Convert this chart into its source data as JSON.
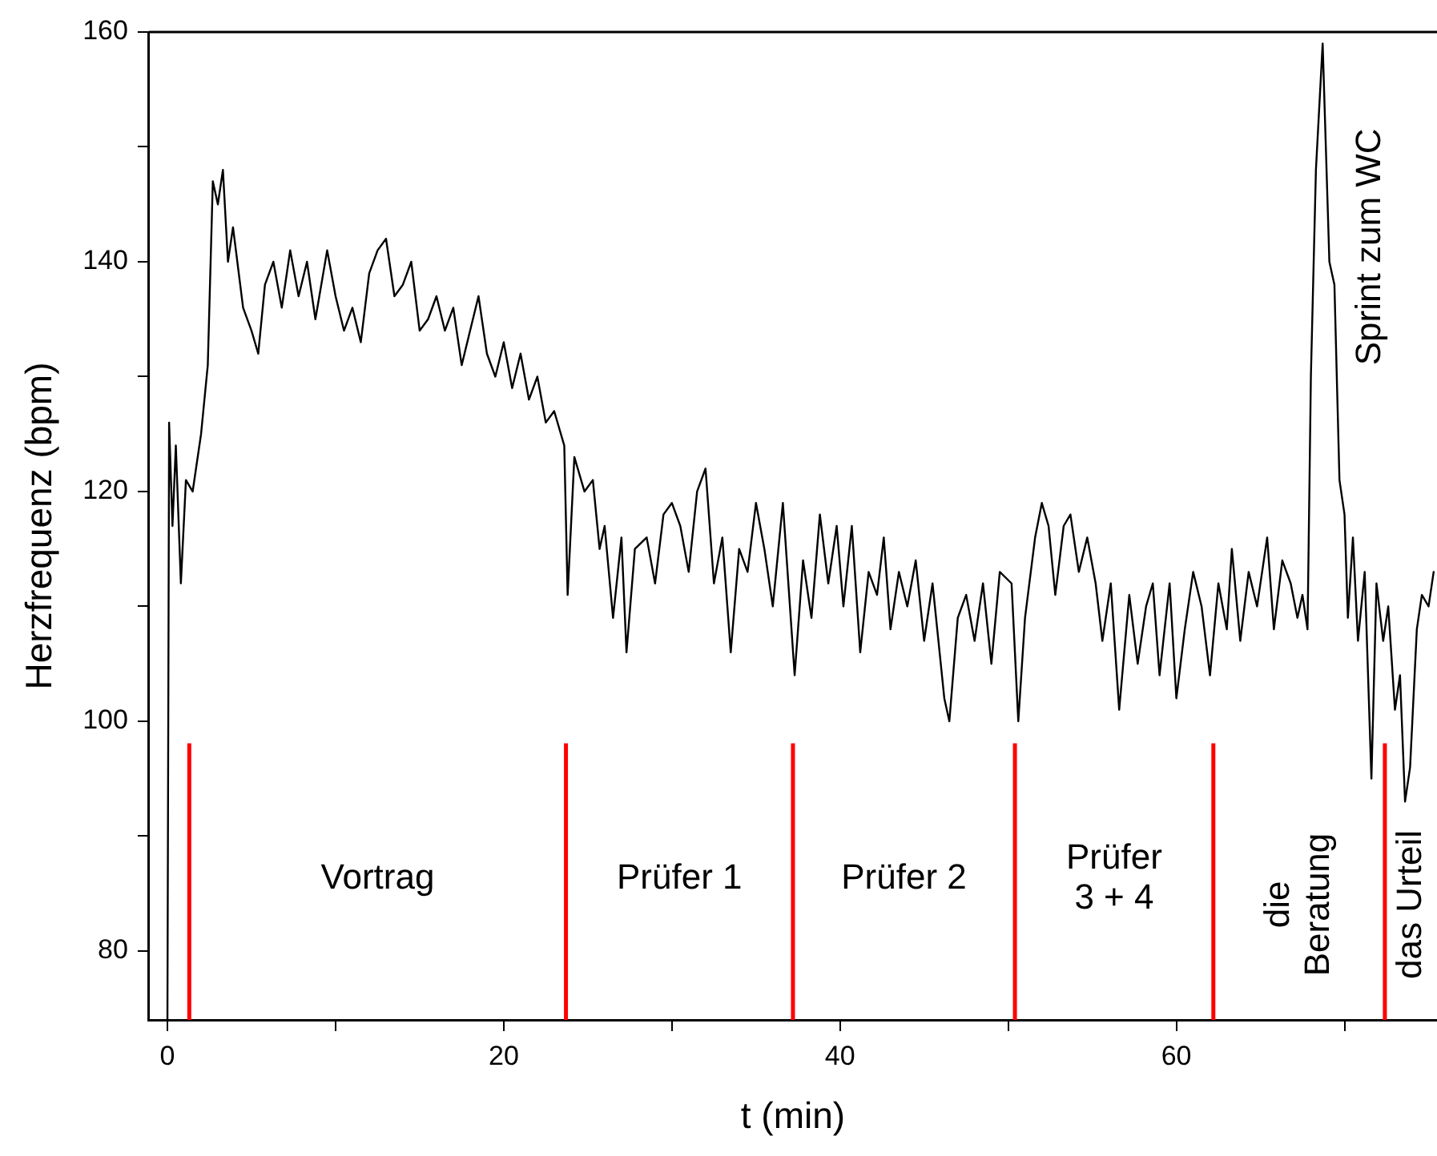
{
  "chart_data": {
    "type": "line",
    "xlabel": "t (min)",
    "ylabel": "Herzfrequenz (bpm)",
    "xlim": [
      -1.1,
      75.5
    ],
    "ylim": [
      74,
      160
    ],
    "xticks": [
      0,
      {
        "value": 10,
        "label": null
      },
      20,
      {
        "value": 30,
        "label": null
      },
      40,
      {
        "value": 50,
        "label": null
      },
      60,
      {
        "value": 70,
        "label": null
      }
    ],
    "yticks": [
      80,
      {
        "value": 90,
        "label": null
      },
      100,
      {
        "value": 110,
        "label": null
      },
      120,
      {
        "value": 130,
        "label": null
      },
      140,
      {
        "value": 150,
        "label": null
      },
      160
    ],
    "grid": false,
    "legend": false,
    "marker": "none",
    "line_style": "solid",
    "series": [
      {
        "color": "#000000",
        "x": [
          0,
          0.1,
          0.3,
          0.5,
          0.8,
          1.1,
          1.5,
          2.0,
          2.4,
          2.7,
          3.0,
          3.3,
          3.6,
          3.9,
          4.5,
          5.0,
          5.4,
          5.8,
          6.3,
          6.8,
          7.3,
          7.8,
          8.3,
          8.8,
          9.5,
          10.0,
          10.5,
          11.0,
          11.5,
          12.0,
          12.5,
          13.0,
          13.5,
          14.0,
          14.5,
          15.0,
          15.5,
          16.0,
          16.5,
          17.0,
          17.5,
          18.0,
          18.5,
          19.0,
          19.5,
          20.0,
          20.5,
          21.0,
          21.5,
          22.0,
          22.5,
          23.0,
          23.6,
          23.8,
          24.2,
          24.8,
          25.3,
          25.7,
          26.0,
          26.5,
          27.0,
          27.3,
          27.8,
          28.5,
          29.0,
          29.5,
          30.0,
          30.5,
          31.0,
          31.5,
          32.0,
          32.5,
          33.0,
          33.5,
          34.0,
          34.5,
          35.0,
          35.5,
          36.0,
          36.6,
          37.3,
          37.8,
          38.3,
          38.8,
          39.3,
          39.8,
          40.2,
          40.7,
          41.2,
          41.7,
          42.2,
          42.6,
          43.0,
          43.5,
          44.0,
          44.5,
          45.0,
          45.5,
          46.2,
          46.5,
          47.0,
          47.5,
          48.0,
          48.5,
          49.0,
          49.5,
          50.2,
          50.6,
          51.0,
          51.6,
          52.0,
          52.4,
          52.8,
          53.3,
          53.7,
          54.2,
          54.7,
          55.2,
          55.6,
          56.1,
          56.6,
          57.2,
          57.7,
          58.2,
          58.6,
          59.0,
          59.6,
          60.0,
          60.5,
          61.0,
          61.5,
          62.0,
          62.5,
          63.0,
          63.3,
          63.8,
          64.3,
          64.8,
          65.4,
          65.8,
          66.3,
          66.8,
          67.2,
          67.5,
          67.8,
          68.0,
          68.3,
          68.7,
          69.1,
          69.4,
          69.7,
          70.0,
          70.2,
          70.5,
          70.8,
          71.2,
          71.6,
          71.9,
          72.3,
          72.6,
          73.0,
          73.3,
          73.6,
          73.9,
          74.3,
          74.6,
          75.0,
          75.3
        ],
        "values": [
          74,
          126,
          117,
          124,
          112,
          121,
          120,
          125,
          131,
          147,
          145,
          148,
          140,
          143,
          136,
          134,
          132,
          138,
          140,
          136,
          141,
          137,
          140,
          135,
          141,
          137,
          134,
          136,
          133,
          139,
          141,
          142,
          137,
          138,
          140,
          134,
          135,
          137,
          134,
          136,
          131,
          134,
          137,
          132,
          130,
          133,
          129,
          132,
          128,
          130,
          126,
          127,
          124,
          111,
          123,
          120,
          121,
          115,
          117,
          109,
          116,
          106,
          115,
          116,
          112,
          118,
          119,
          117,
          113,
          120,
          122,
          112,
          116,
          106,
          115,
          113,
          119,
          115,
          110,
          119,
          104,
          114,
          109,
          118,
          112,
          117,
          110,
          117,
          106,
          113,
          111,
          116,
          108,
          113,
          110,
          114,
          107,
          112,
          102,
          100,
          109,
          111,
          107,
          112,
          105,
          113,
          112,
          100,
          109,
          116,
          119,
          117,
          111,
          117,
          118,
          113,
          116,
          112,
          107,
          112,
          101,
          111,
          105,
          110,
          112,
          104,
          112,
          102,
          108,
          113,
          110,
          104,
          112,
          108,
          115,
          107,
          113,
          110,
          116,
          108,
          114,
          112,
          109,
          111,
          108,
          130,
          148,
          159,
          140,
          138,
          121,
          118,
          109,
          116,
          107,
          113,
          95,
          112,
          107,
          110,
          101,
          104,
          93,
          96,
          108,
          111,
          110,
          113
        ]
      }
    ],
    "ref_lines": [
      {
        "axis": "x",
        "value": 1.3,
        "color": "#ff0000"
      },
      {
        "axis": "x",
        "value": 23.7,
        "color": "#ff0000"
      },
      {
        "axis": "x",
        "value": 37.2,
        "color": "#ff0000"
      },
      {
        "axis": "x",
        "value": 50.4,
        "color": "#ff0000"
      },
      {
        "axis": "x",
        "value": 62.2,
        "color": "#ff0000"
      },
      {
        "axis": "x",
        "value": 72.4,
        "color": "#ff0000"
      }
    ],
    "annotations": [
      "Vortrag",
      "Prüfer 1",
      "Prüfer 2",
      "Prüfer\n3 + 4",
      "die\nBeratung",
      "das Urteil",
      "Sprint zum WC"
    ]
  }
}
